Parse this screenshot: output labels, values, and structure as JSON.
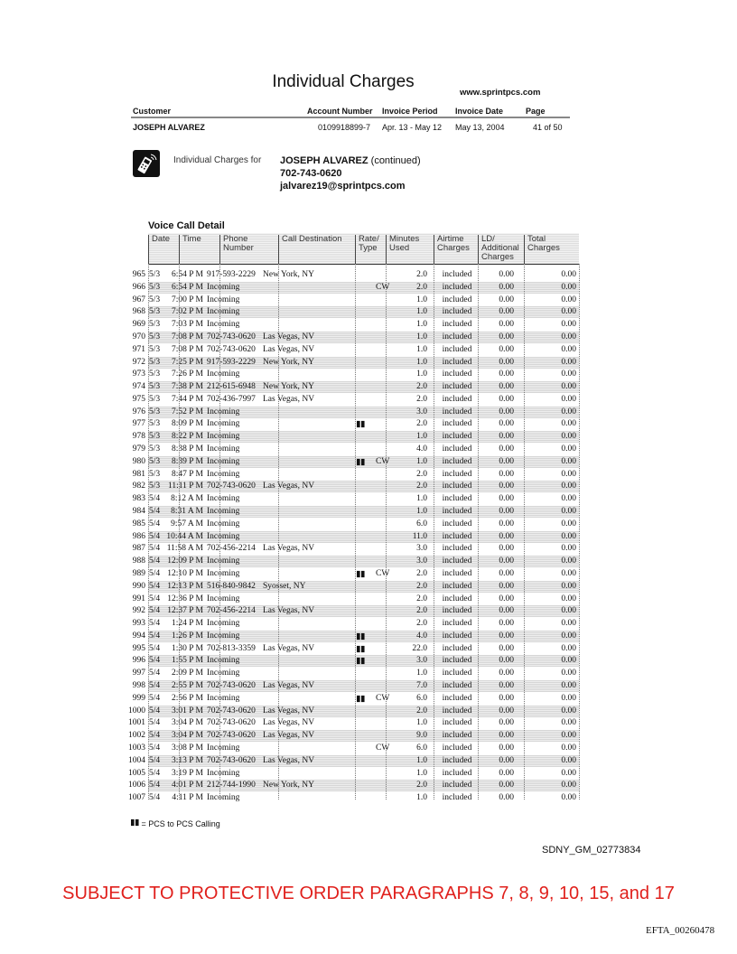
{
  "header": {
    "title": "Individual Charges",
    "website": "www.sprintpcs.com",
    "columns": {
      "customer": "Customer",
      "account": "Account Number",
      "period": "Invoice Period",
      "date": "Invoice Date",
      "page": "Page"
    },
    "values": {
      "customer": "JOSEPH ALVAREZ",
      "account": "0109918899-7",
      "period": "Apr. 13 - May 12",
      "date": "May 13, 2004",
      "page": "41 of 50"
    }
  },
  "subscriber": {
    "label": "Individual Charges for",
    "name": "JOSEPH ALVAREZ",
    "continued": "(continued)",
    "phone": "702-743-0620",
    "email": "jalvarez19@sprintpcs.com",
    "icon": "cell-phone-icon"
  },
  "section_title": "Voice Call Detail",
  "table": {
    "headers": [
      "Date",
      "Time",
      "Phone Number",
      "Call Destination",
      "Rate/ Type",
      "Minutes Used",
      "Airtime Charges",
      "LD/ Additional Charges",
      "Total Charges"
    ],
    "rows": [
      [
        "965",
        "5/3",
        "6:54 P M",
        "917-593-2229",
        "New York, NY",
        false,
        "",
        "2.0",
        "included",
        "0.00",
        "0.00"
      ],
      [
        "966",
        "5/3",
        "6:54 P M",
        "Incoming",
        "",
        false,
        "CW",
        "2.0",
        "included",
        "0.00",
        "0.00"
      ],
      [
        "967",
        "5/3",
        "7:00 P M",
        "Incoming",
        "",
        false,
        "",
        "1.0",
        "included",
        "0.00",
        "0.00"
      ],
      [
        "968",
        "5/3",
        "7:02 P M",
        "Incoming",
        "",
        false,
        "",
        "1.0",
        "included",
        "0.00",
        "0.00"
      ],
      [
        "969",
        "5/3",
        "7:03 P M",
        "Incoming",
        "",
        false,
        "",
        "1.0",
        "included",
        "0.00",
        "0.00"
      ],
      [
        "970",
        "5/3",
        "7:08 P M",
        "702-743-0620",
        "Las Vegas, NV",
        false,
        "",
        "1.0",
        "included",
        "0.00",
        "0.00"
      ],
      [
        "971",
        "5/3",
        "7:08 P M",
        "702-743-0620",
        "Las Vegas, NV",
        false,
        "",
        "1.0",
        "included",
        "0.00",
        "0.00"
      ],
      [
        "972",
        "5/3",
        "7:25 P M",
        "917-593-2229",
        "New York, NY",
        false,
        "",
        "1.0",
        "included",
        "0.00",
        "0.00"
      ],
      [
        "973",
        "5/3",
        "7:26 P M",
        "Incoming",
        "",
        false,
        "",
        "1.0",
        "included",
        "0.00",
        "0.00"
      ],
      [
        "974",
        "5/3",
        "7:38 P M",
        "212-615-6948",
        "New York, NY",
        false,
        "",
        "2.0",
        "included",
        "0.00",
        "0.00"
      ],
      [
        "975",
        "5/3",
        "7:44 P M",
        "702-436-7997",
        "Las Vegas, NV",
        false,
        "",
        "2.0",
        "included",
        "0.00",
        "0.00"
      ],
      [
        "976",
        "5/3",
        "7:52 P M",
        "Incoming",
        "",
        false,
        "",
        "3.0",
        "included",
        "0.00",
        "0.00"
      ],
      [
        "977",
        "5/3",
        "8:09 P M",
        "Incoming",
        "",
        true,
        "",
        "2.0",
        "included",
        "0.00",
        "0.00"
      ],
      [
        "978",
        "5/3",
        "8:22 P M",
        "Incoming",
        "",
        false,
        "",
        "1.0",
        "included",
        "0.00",
        "0.00"
      ],
      [
        "979",
        "5/3",
        "8:38 P M",
        "Incoming",
        "",
        false,
        "",
        "4.0",
        "included",
        "0.00",
        "0.00"
      ],
      [
        "980",
        "5/3",
        "8:39 P M",
        "Incoming",
        "",
        true,
        "CW",
        "1.0",
        "included",
        "0.00",
        "0.00"
      ],
      [
        "981",
        "5/3",
        "8:47 P M",
        "Incoming",
        "",
        false,
        "",
        "2.0",
        "included",
        "0.00",
        "0.00"
      ],
      [
        "982",
        "5/3",
        "11:11 P M",
        "702-743-0620",
        "Las Vegas, NV",
        false,
        "",
        "2.0",
        "included",
        "0.00",
        "0.00"
      ],
      [
        "983",
        "5/4",
        "8:12 A M",
        "Incoming",
        "",
        false,
        "",
        "1.0",
        "included",
        "0.00",
        "0.00"
      ],
      [
        "984",
        "5/4",
        "8:31 A M",
        "Incoming",
        "",
        false,
        "",
        "1.0",
        "included",
        "0.00",
        "0.00"
      ],
      [
        "985",
        "5/4",
        "9:57 A M",
        "Incoming",
        "",
        false,
        "",
        "6.0",
        "included",
        "0.00",
        "0.00"
      ],
      [
        "986",
        "5/4",
        "10:44 A M",
        "Incoming",
        "",
        false,
        "",
        "11.0",
        "included",
        "0.00",
        "0.00"
      ],
      [
        "987",
        "5/4",
        "11:58 A M",
        "702-456-2214",
        "Las Vegas, NV",
        false,
        "",
        "3.0",
        "included",
        "0.00",
        "0.00"
      ],
      [
        "988",
        "5/4",
        "12:09 P M",
        "Incoming",
        "",
        false,
        "",
        "3.0",
        "included",
        "0.00",
        "0.00"
      ],
      [
        "989",
        "5/4",
        "12:10 P M",
        "Incoming",
        "",
        true,
        "CW",
        "2.0",
        "included",
        "0.00",
        "0.00"
      ],
      [
        "990",
        "5/4",
        "12:13 P M",
        "516-840-9842",
        "Syosset, NY",
        false,
        "",
        "2.0",
        "included",
        "0.00",
        "0.00"
      ],
      [
        "991",
        "5/4",
        "12:36 P M",
        "Incoming",
        "",
        false,
        "",
        "2.0",
        "included",
        "0.00",
        "0.00"
      ],
      [
        "992",
        "5/4",
        "12:37 P M",
        "702-456-2214",
        "Las Vegas, NV",
        false,
        "",
        "2.0",
        "included",
        "0.00",
        "0.00"
      ],
      [
        "993",
        "5/4",
        "1:24 P M",
        "Incoming",
        "",
        false,
        "",
        "2.0",
        "included",
        "0.00",
        "0.00"
      ],
      [
        "994",
        "5/4",
        "1:26 P M",
        "Incoming",
        "",
        true,
        "",
        "4.0",
        "included",
        "0.00",
        "0.00"
      ],
      [
        "995",
        "5/4",
        "1:30 P M",
        "702-813-3359",
        "Las Vegas, NV",
        true,
        "",
        "22.0",
        "included",
        "0.00",
        "0.00"
      ],
      [
        "996",
        "5/4",
        "1:55 P M",
        "Incoming",
        "",
        true,
        "",
        "3.0",
        "included",
        "0.00",
        "0.00"
      ],
      [
        "997",
        "5/4",
        "2:09 P M",
        "Incoming",
        "",
        false,
        "",
        "1.0",
        "included",
        "0.00",
        "0.00"
      ],
      [
        "998",
        "5/4",
        "2:55 P M",
        "702-743-0620",
        "Las Vegas, NV",
        false,
        "",
        "7.0",
        "included",
        "0.00",
        "0.00"
      ],
      [
        "999",
        "5/4",
        "2:56 P M",
        "Incoming",
        "",
        true,
        "CW",
        "6.0",
        "included",
        "0.00",
        "0.00"
      ],
      [
        "1000",
        "5/4",
        "3:01 P M",
        "702-743-0620",
        "Las Vegas, NV",
        false,
        "",
        "2.0",
        "included",
        "0.00",
        "0.00"
      ],
      [
        "1001",
        "5/4",
        "3:04 P M",
        "702-743-0620",
        "Las Vegas, NV",
        false,
        "",
        "1.0",
        "included",
        "0.00",
        "0.00"
      ],
      [
        "1002",
        "5/4",
        "3:04 P M",
        "702-743-0620",
        "Las Vegas, NV",
        false,
        "",
        "9.0",
        "included",
        "0.00",
        "0.00"
      ],
      [
        "1003",
        "5/4",
        "3:08 P M",
        "Incoming",
        "",
        false,
        "CW",
        "6.0",
        "included",
        "0.00",
        "0.00"
      ],
      [
        "1004",
        "5/4",
        "3:13 P M",
        "702-743-0620",
        "Las Vegas, NV",
        false,
        "",
        "1.0",
        "included",
        "0.00",
        "0.00"
      ],
      [
        "1005",
        "5/4",
        "3:19 P M",
        "Incoming",
        "",
        false,
        "",
        "1.0",
        "included",
        "0.00",
        "0.00"
      ],
      [
        "1006",
        "5/4",
        "4:01 P M",
        "212-744-1990",
        "New York, NY",
        false,
        "",
        "2.0",
        "included",
        "0.00",
        "0.00"
      ],
      [
        "1007",
        "5/4",
        "4:11 P M",
        "Incoming",
        "",
        false,
        "",
        "1.0",
        "included",
        "0.00",
        "0.00"
      ]
    ]
  },
  "legend": {
    "icon": "pcs-to-pcs-icon",
    "text": "= PCS to PCS Calling"
  },
  "bates": "SDNY_GM_02773834",
  "protective_order": "SUBJECT TO PROTECTIVE ORDER PARAGRAPHS 7, 8, 9, 10, 15, and 17",
  "efta": "EFTA_00260478"
}
